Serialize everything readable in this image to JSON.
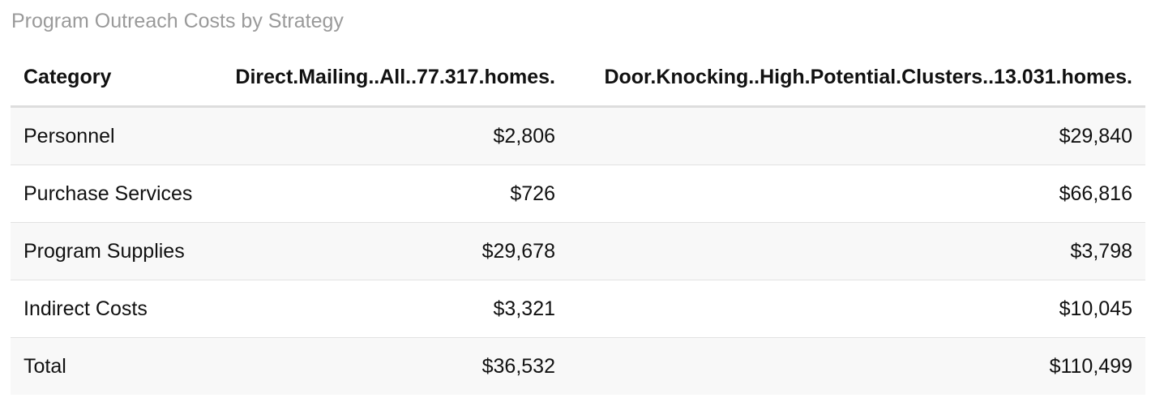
{
  "title": "Program Outreach Costs by Strategy",
  "table": {
    "headers": [
      "Category",
      "Direct.Mailing..All..77.317.homes.",
      "Door.Knocking..High.Potential.Clusters..13.031.homes."
    ],
    "rows": [
      [
        "Personnel",
        "$2,806",
        "$29,840"
      ],
      [
        "Purchase Services",
        "$726",
        "$66,816"
      ],
      [
        "Program Supplies",
        "$29,678",
        "$3,798"
      ],
      [
        "Indirect Costs",
        "$3,321",
        "$10,045"
      ],
      [
        "Total",
        "$36,532",
        "$110,499"
      ]
    ]
  }
}
